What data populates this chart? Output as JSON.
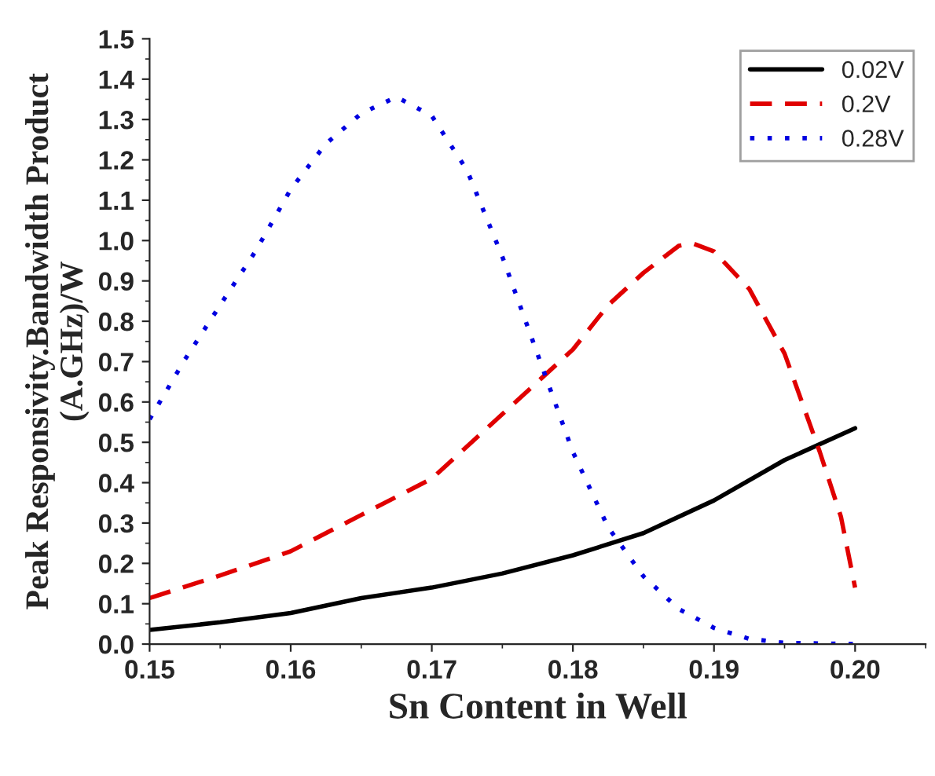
{
  "chart_data": {
    "type": "line",
    "xlabel": "Sn Content in Well",
    "ylabel": "Peak Responsivity.Bandwidth Product\n(A.GHz)/W",
    "xlim": [
      0.15,
      0.205
    ],
    "xticks": [
      {
        "value": 0.15,
        "label": "0.15"
      },
      {
        "value": 0.16,
        "label": "0.16"
      },
      {
        "value": 0.17,
        "label": "0.17"
      },
      {
        "value": 0.18,
        "label": "0.18"
      },
      {
        "value": 0.19,
        "label": "0.19"
      },
      {
        "value": 0.2,
        "label": "0.20"
      }
    ],
    "ylim": [
      0,
      1.5
    ],
    "yticks": [
      {
        "value": 0,
        "label": "0.0"
      },
      {
        "value": 0.1,
        "label": "0.1"
      },
      {
        "value": 0.2,
        "label": "0.2"
      },
      {
        "value": 0.3,
        "label": "0.3"
      },
      {
        "value": 0.4,
        "label": "0.4"
      },
      {
        "value": 0.5,
        "label": "0.5"
      },
      {
        "value": 0.6,
        "label": "0.6"
      },
      {
        "value": 0.7,
        "label": "0.7"
      },
      {
        "value": 0.8,
        "label": "0.8"
      },
      {
        "value": 0.9,
        "label": "0.9"
      },
      {
        "value": 1.0,
        "label": "1.0"
      },
      {
        "value": 1.1,
        "label": "1.1"
      },
      {
        "value": 1.2,
        "label": "1.2"
      },
      {
        "value": 1.3,
        "label": "1.3"
      },
      {
        "value": 1.4,
        "label": "1.4"
      },
      {
        "value": 1.5,
        "label": "1.5"
      }
    ],
    "legend": "top right",
    "grid": false,
    "series": [
      {
        "name": "0.02V",
        "color": "#000000",
        "line_style": "solid",
        "x": [
          0.15,
          0.155,
          0.16,
          0.165,
          0.17,
          0.175,
          0.18,
          0.185,
          0.19,
          0.195,
          0.2
        ],
        "values": [
          0.035,
          0.054,
          0.077,
          0.114,
          0.14,
          0.175,
          0.22,
          0.275,
          0.356,
          0.456,
          0.535
        ]
      },
      {
        "name": "0.2V",
        "color": "#e00000",
        "line_style": "dashed",
        "x": [
          0.15,
          0.155,
          0.16,
          0.165,
          0.17,
          0.175,
          0.18,
          0.1825,
          0.185,
          0.1875,
          0.1885,
          0.19,
          0.1925,
          0.195,
          0.1975,
          0.199,
          0.2
        ],
        "values": [
          0.114,
          0.17,
          0.23,
          0.32,
          0.41,
          0.57,
          0.73,
          0.84,
          0.92,
          0.987,
          0.993,
          0.973,
          0.88,
          0.72,
          0.476,
          0.315,
          0.14
        ]
      },
      {
        "name": "0.28V",
        "color": "#0000e0",
        "line_style": "dotted",
        "x": [
          0.15,
          0.1525,
          0.155,
          0.1575,
          0.16,
          0.1625,
          0.165,
          0.1675,
          0.17,
          0.1725,
          0.175,
          0.1775,
          0.18,
          0.1825,
          0.185,
          0.1875,
          0.19,
          0.1925,
          0.195,
          0.2
        ],
        "values": [
          0.557,
          0.705,
          0.84,
          0.973,
          1.127,
          1.24,
          1.315,
          1.356,
          1.309,
          1.174,
          0.96,
          0.718,
          0.476,
          0.289,
          0.168,
          0.087,
          0.04,
          0.013,
          0.003,
          0.0
        ]
      }
    ]
  }
}
